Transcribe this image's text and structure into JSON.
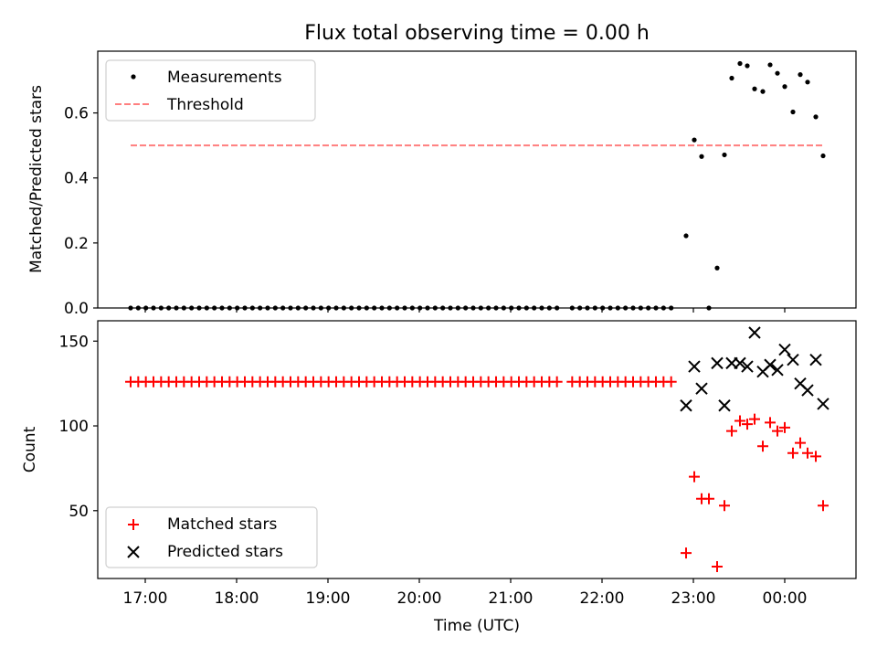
{
  "title": "Flux total observing time = 0.00 h",
  "x_axis": {
    "label": "Time (UTC)",
    "ticks": [
      {
        "value": 17,
        "label": "17:00"
      },
      {
        "value": 18,
        "label": "18:00"
      },
      {
        "value": 19,
        "label": "19:00"
      },
      {
        "value": 20,
        "label": "20:00"
      },
      {
        "value": 21,
        "label": "21:00"
      },
      {
        "value": 22,
        "label": "22:00"
      },
      {
        "value": 23,
        "label": "23:00"
      },
      {
        "value": 24,
        "label": "00:00"
      }
    ],
    "range": [
      16.48,
      24.78
    ]
  },
  "chart_data": [
    {
      "type": "scatter",
      "title": "Flux total observing time = 0.00 h",
      "ylabel": "Matched/Predicted stars",
      "ylim": [
        0,
        0.79
      ],
      "yticks": [
        {
          "value": 0.0,
          "label": "0.0"
        },
        {
          "value": 0.2,
          "label": "0.2"
        },
        {
          "value": 0.4,
          "label": "0.4"
        },
        {
          "value": 0.6,
          "label": "0.6"
        }
      ],
      "legend_position": "upper-left",
      "legend": [
        {
          "name": "Measurements",
          "marker": "dot",
          "color": "#000000"
        },
        {
          "name": "Threshold",
          "marker": "dashed-line",
          "color": "#ff7f7f"
        }
      ],
      "threshold": {
        "name": "Threshold",
        "value": 0.5,
        "x_range": [
          16.84,
          24.42
        ],
        "color": "#ff7f7f"
      },
      "measurements": {
        "name": "Measurements",
        "color": "#000000",
        "zero_run": {
          "x_start": 16.84,
          "x_end": 22.83,
          "y": 0.0,
          "gaps": [
            [
              21.57,
              21.67
            ]
          ]
        },
        "points": [
          [
            22.92,
            0.222
          ],
          [
            23.01,
            0.517
          ],
          [
            23.09,
            0.466
          ],
          [
            23.17,
            0.0
          ],
          [
            23.26,
            0.123
          ],
          [
            23.34,
            0.471
          ],
          [
            23.42,
            0.707
          ],
          [
            23.51,
            0.752
          ],
          [
            23.59,
            0.745
          ],
          [
            23.67,
            0.674
          ],
          [
            23.76,
            0.666
          ],
          [
            23.84,
            0.748
          ],
          [
            23.92,
            0.722
          ],
          [
            24.0,
            0.681
          ],
          [
            24.09,
            0.603
          ],
          [
            24.17,
            0.718
          ],
          [
            24.25,
            0.695
          ],
          [
            24.34,
            0.588
          ],
          [
            24.42,
            0.468
          ]
        ]
      }
    },
    {
      "type": "scatter",
      "ylabel": "Count",
      "ylim": [
        10,
        162
      ],
      "yticks": [
        {
          "value": 50,
          "label": "50"
        },
        {
          "value": 100,
          "label": "100"
        },
        {
          "value": 150,
          "label": "150"
        }
      ],
      "legend_position": "lower-left",
      "series": [
        {
          "name": "Matched stars",
          "marker": "plus",
          "color": "#ff0000",
          "constant_run": {
            "x_start": 16.84,
            "x_end": 22.83,
            "y": 126,
            "gaps": [
              [
                21.57,
                21.67
              ]
            ]
          },
          "points": [
            [
              22.92,
              25
            ],
            [
              23.01,
              70
            ],
            [
              23.09,
              57
            ],
            [
              23.17,
              57
            ],
            [
              23.26,
              17
            ],
            [
              23.34,
              53
            ],
            [
              23.42,
              97
            ],
            [
              23.51,
              103
            ],
            [
              23.59,
              101
            ],
            [
              23.67,
              104
            ],
            [
              23.76,
              88
            ],
            [
              23.84,
              102
            ],
            [
              23.92,
              97
            ],
            [
              24.0,
              99
            ],
            [
              24.09,
              84
            ],
            [
              24.17,
              90
            ],
            [
              24.25,
              84
            ],
            [
              24.34,
              82
            ],
            [
              24.42,
              53
            ]
          ]
        },
        {
          "name": "Predicted stars",
          "marker": "x",
          "color": "#000000",
          "points": [
            [
              22.92,
              112
            ],
            [
              23.01,
              135
            ],
            [
              23.09,
              122
            ],
            [
              23.26,
              137
            ],
            [
              23.34,
              112
            ],
            [
              23.42,
              137
            ],
            [
              23.51,
              137
            ],
            [
              23.59,
              135
            ],
            [
              23.67,
              155
            ],
            [
              23.76,
              132
            ],
            [
              23.84,
              136
            ],
            [
              23.92,
              133
            ],
            [
              24.0,
              145
            ],
            [
              24.09,
              139
            ],
            [
              24.17,
              125
            ],
            [
              24.25,
              121
            ],
            [
              24.34,
              139
            ],
            [
              24.42,
              113
            ]
          ]
        }
      ]
    }
  ]
}
